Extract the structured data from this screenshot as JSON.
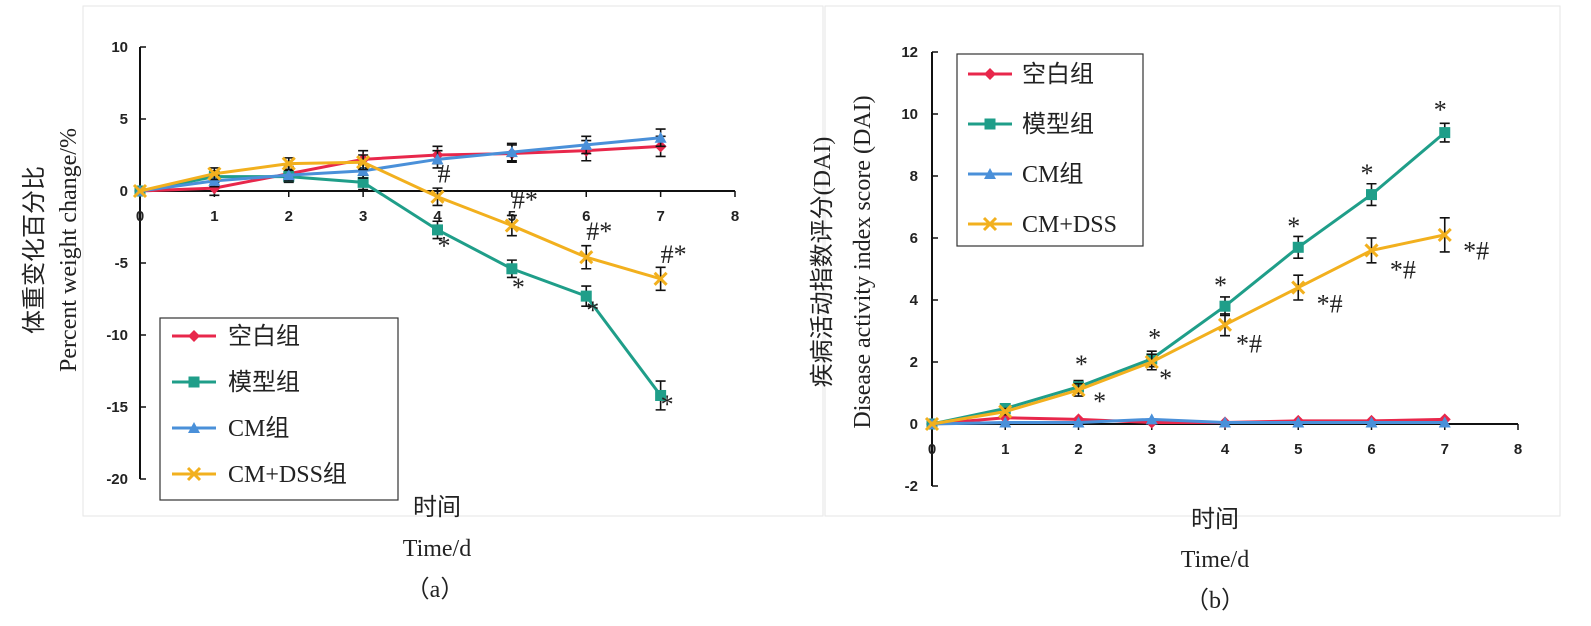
{
  "chart_data": [
    {
      "panel": "(a)",
      "type": "line",
      "ylabel_zh": "体重变化百分比",
      "ylabel_en": "Percent weight change/%",
      "xlabel_zh": "时间",
      "xlabel_en": "Time/d",
      "xlim": [
        0,
        8
      ],
      "ylim": [
        -20,
        10
      ],
      "x_ticks": [
        "0",
        "1",
        "2",
        "3",
        "4",
        "5",
        "6",
        "7",
        "8"
      ],
      "y_ticks": [
        "10",
        "5",
        "0",
        "-5",
        "-10",
        "-15",
        "-20"
      ],
      "grid": false,
      "legend_position": "bottom-left",
      "x": [
        0,
        1,
        2,
        3,
        4,
        5,
        6,
        7
      ],
      "series": [
        {
          "name": "空白组",
          "color": "#e8274b",
          "marker": "diamond",
          "values": [
            0,
            0.2,
            1.2,
            2.2,
            2.5,
            2.6,
            2.8,
            3.1
          ],
          "errors": [
            0,
            0.5,
            0.5,
            0.6,
            0.6,
            0.6,
            0.7,
            0.7
          ]
        },
        {
          "name": "模型组",
          "color": "#1f9e89",
          "marker": "square",
          "values": [
            0,
            1.0,
            1.0,
            0.6,
            -2.7,
            -5.4,
            -7.3,
            -14.2
          ],
          "errors": [
            0,
            0.4,
            0.4,
            0.5,
            0.6,
            0.6,
            0.7,
            1.0
          ]
        },
        {
          "name": "CM组",
          "color": "#4a90d9",
          "marker": "triangle",
          "values": [
            0,
            0.7,
            1.1,
            1.4,
            2.2,
            2.7,
            3.2,
            3.7
          ],
          "errors": [
            0,
            0.4,
            0.4,
            0.5,
            0.6,
            0.6,
            0.6,
            0.6
          ]
        },
        {
          "name": "CM+DSS组",
          "color": "#f2b01e",
          "marker": "x",
          "values": [
            0,
            1.2,
            1.9,
            2.0,
            -0.4,
            -2.4,
            -4.6,
            -6.1
          ],
          "errors": [
            0,
            0.4,
            0.4,
            0.5,
            0.6,
            0.7,
            0.8,
            0.8
          ]
        }
      ],
      "annotations": [
        {
          "text": "#",
          "x": 4,
          "y": 0.6
        },
        {
          "text": "*",
          "x": 4,
          "y": -4.4
        },
        {
          "text": "#*",
          "x": 5,
          "y": -1.2
        },
        {
          "text": "*",
          "x": 5,
          "y": -7.3
        },
        {
          "text": "#*",
          "x": 6,
          "y": -3.4
        },
        {
          "text": "*",
          "x": 6,
          "y": -8.9
        },
        {
          "text": "#*",
          "x": 7,
          "y": -5.0
        },
        {
          "text": "*",
          "x": 7,
          "y": -15.4
        }
      ]
    },
    {
      "panel": "(b)",
      "type": "line",
      "ylabel_zh": "疾病活动指数评分(DAI)",
      "ylabel_en": "Disease activity index score (DAI)",
      "xlabel_zh": "时间",
      "xlabel_en": "Time/d",
      "xlim": [
        0,
        8
      ],
      "ylim": [
        -2,
        12
      ],
      "x_ticks": [
        "0",
        "1",
        "2",
        "3",
        "4",
        "5",
        "6",
        "7",
        "8"
      ],
      "y_ticks": [
        "12",
        "10",
        "8",
        "6",
        "4",
        "2",
        "0",
        "-2"
      ],
      "grid": false,
      "legend_position": "top-left",
      "x": [
        0,
        1,
        2,
        3,
        4,
        5,
        6,
        7
      ],
      "series": [
        {
          "name": "空白组",
          "color": "#e8274b",
          "marker": "diamond",
          "values": [
            0,
            0.2,
            0.15,
            0.05,
            0.05,
            0.1,
            0.1,
            0.15
          ],
          "errors": [
            0,
            0,
            0,
            0,
            0,
            0,
            0,
            0
          ]
        },
        {
          "name": "模型组",
          "color": "#1f9e89",
          "marker": "square",
          "values": [
            0,
            0.5,
            1.2,
            2.1,
            3.8,
            5.7,
            7.4,
            9.4
          ],
          "errors": [
            0,
            0.1,
            0.2,
            0.25,
            0.3,
            0.35,
            0.35,
            0.3
          ]
        },
        {
          "name": "CM组",
          "color": "#4a90d9",
          "marker": "triangle",
          "values": [
            0,
            0.05,
            0.05,
            0.15,
            0.05,
            0.05,
            0.05,
            0.05
          ],
          "errors": [
            0,
            0,
            0,
            0,
            0,
            0,
            0,
            0
          ]
        },
        {
          "name": "CM+DSS",
          "color": "#f2b01e",
          "marker": "x",
          "values": [
            0,
            0.4,
            1.1,
            2.0,
            3.2,
            4.4,
            5.6,
            6.1
          ],
          "errors": [
            0,
            0.1,
            0.2,
            0.25,
            0.35,
            0.4,
            0.4,
            0.55
          ]
        }
      ],
      "annotations": [
        {
          "text": "*",
          "x": 1.95,
          "y": 1.65
        },
        {
          "text": "*",
          "x": 2.2,
          "y": 0.45
        },
        {
          "text": "*",
          "x": 2.95,
          "y": 2.5
        },
        {
          "text": "*",
          "x": 3.1,
          "y": 1.2
        },
        {
          "text": "*",
          "x": 3.85,
          "y": 4.2
        },
        {
          "text": "*#",
          "x": 4.15,
          "y": 2.3
        },
        {
          "text": "*",
          "x": 4.85,
          "y": 6.1
        },
        {
          "text": "*#",
          "x": 5.25,
          "y": 3.6
        },
        {
          "text": "*",
          "x": 5.85,
          "y": 7.8
        },
        {
          "text": "*#",
          "x": 6.25,
          "y": 4.7
        },
        {
          "text": "*",
          "x": 6.85,
          "y": 9.85
        },
        {
          "text": "*#",
          "x": 7.25,
          "y": 5.3
        }
      ]
    }
  ],
  "captions": {
    "a": "（a）",
    "b": "（b）"
  }
}
